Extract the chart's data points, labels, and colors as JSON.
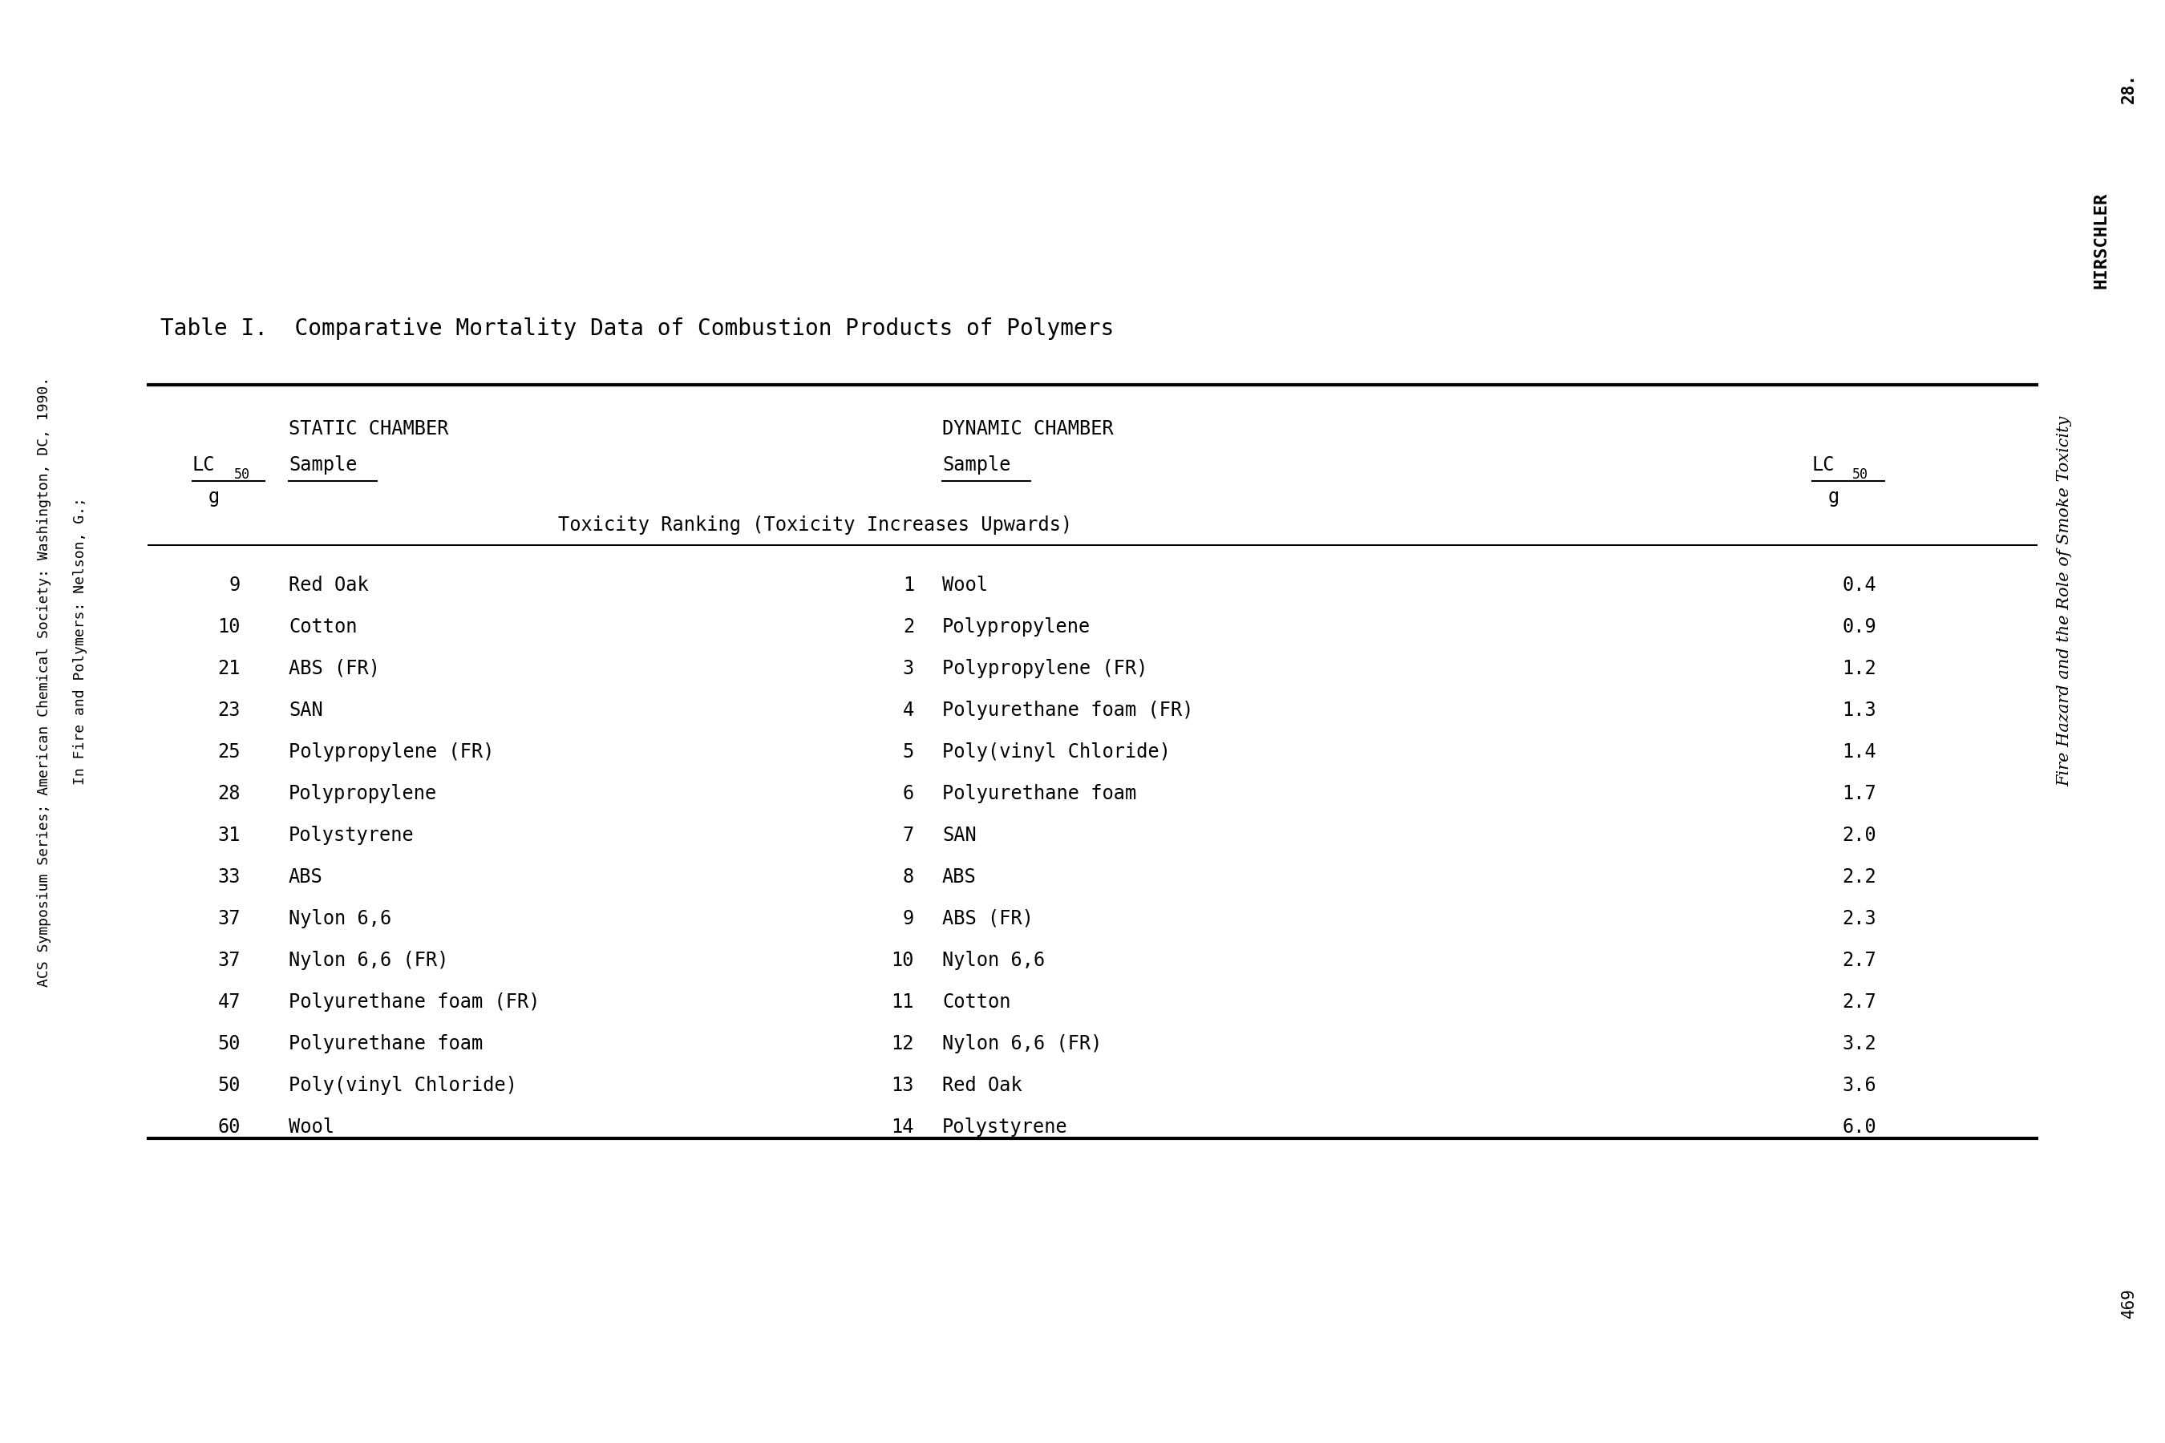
{
  "title": "Table I.  Comparative Mortality Data of Combustion Products of Polymers",
  "background_color": "#ffffff",
  "text_color": "#000000",
  "static_header1": "STATIC CHAMBER",
  "static_header2": "Sample",
  "dynamic_header1": "DYNAMIC CHAMBER",
  "dynamic_header2": "Sample",
  "g_label": "g",
  "toxicity_ranking_text": "Toxicity Ranking (Toxicity Increases Upwards)",
  "static_rows": [
    {
      "lc50": "9",
      "sample": "Red Oak"
    },
    {
      "lc50": "10",
      "sample": "Cotton"
    },
    {
      "lc50": "21",
      "sample": "ABS (FR)"
    },
    {
      "lc50": "23",
      "sample": "SAN"
    },
    {
      "lc50": "25",
      "sample": "Polypropylene (FR)"
    },
    {
      "lc50": "28",
      "sample": "Polypropylene"
    },
    {
      "lc50": "31",
      "sample": "Polystyrene"
    },
    {
      "lc50": "33",
      "sample": "ABS"
    },
    {
      "lc50": "37",
      "sample": "Nylon 6,6"
    },
    {
      "lc50": "37",
      "sample": "Nylon 6,6 (FR)"
    },
    {
      "lc50": "47",
      "sample": "Polyurethane foam (FR)"
    },
    {
      "lc50": "50",
      "sample": "Polyurethane foam"
    },
    {
      "lc50": "50",
      "sample": "Poly(vinyl Chloride)"
    },
    {
      "lc50": "60",
      "sample": "Wool"
    }
  ],
  "dynamic_rows": [
    {
      "rank": "1",
      "sample": "Wool",
      "lc50": "0.4"
    },
    {
      "rank": "2",
      "sample": "Polypropylene",
      "lc50": "0.9"
    },
    {
      "rank": "3",
      "sample": "Polypropylene (FR)",
      "lc50": "1.2"
    },
    {
      "rank": "4",
      "sample": "Polyurethane foam (FR)",
      "lc50": "1.3"
    },
    {
      "rank": "5",
      "sample": "Poly(vinyl Chloride)",
      "lc50": "1.4"
    },
    {
      "rank": "6",
      "sample": "Polyurethane foam",
      "lc50": "1.7"
    },
    {
      "rank": "7",
      "sample": "SAN",
      "lc50": "2.0"
    },
    {
      "rank": "8",
      "sample": "ABS",
      "lc50": "2.2"
    },
    {
      "rank": "9",
      "sample": "ABS (FR)",
      "lc50": "2.3"
    },
    {
      "rank": "10",
      "sample": "Nylon 6,6",
      "lc50": "2.7"
    },
    {
      "rank": "11",
      "sample": "Cotton",
      "lc50": "2.7"
    },
    {
      "rank": "12",
      "sample": "Nylon 6,6 (FR)",
      "lc50": "3.2"
    },
    {
      "rank": "13",
      "sample": "Red Oak",
      "lc50": "3.6"
    },
    {
      "rank": "14",
      "sample": "Polystyrene",
      "lc50": "6.0"
    }
  ],
  "side_text_left1": "In Fire and Polymers: Nelson, G.;",
  "side_text_left2": "ACS Symposium Series; American Chemical Society: Washington, DC, 1990.",
  "side_text_right1": "28.",
  "side_text_right2": "HIRSCHLER",
  "side_text_right3": "Fire Hazard and the Role of Smoke Toxicity",
  "side_text_right4": "469",
  "title_fontsize": 20,
  "header_fontsize": 17,
  "data_fontsize": 17,
  "side_fontsize": 13
}
